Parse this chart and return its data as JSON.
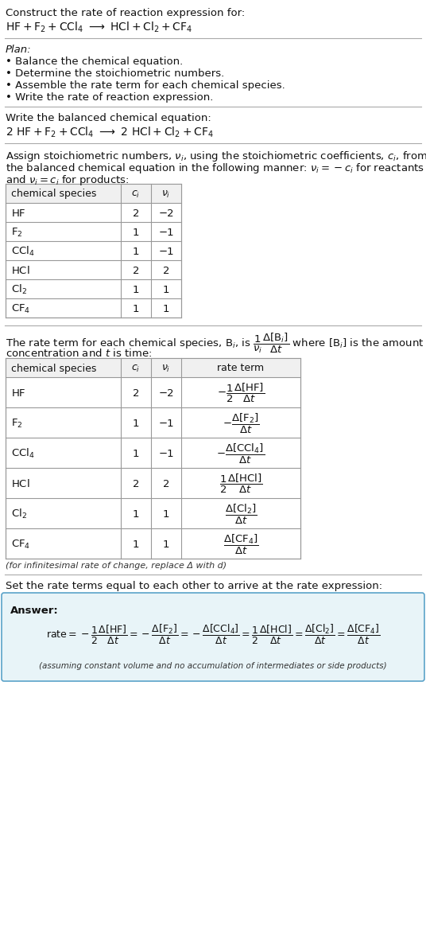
{
  "bg_color": "#ffffff",
  "text_color": "#000000",
  "title_line1": "Construct the rate of reaction expression for:",
  "plan_header": "Plan:",
  "plan_items": [
    "• Balance the chemical equation.",
    "• Determine the stoichiometric numbers.",
    "• Assemble the rate term for each chemical species.",
    "• Write the rate of reaction expression."
  ],
  "balanced_header": "Write the balanced chemical equation:",
  "table1_species": [
    "HF",
    "F_2",
    "CCl_4",
    "HCl",
    "Cl_2",
    "CF_4"
  ],
  "table1_ci": [
    "2",
    "1",
    "1",
    "2",
    "1",
    "1"
  ],
  "table1_ni": [
    "−2",
    "−1",
    "−1",
    "2",
    "1",
    "1"
  ],
  "table2_species": [
    "HF",
    "F_2",
    "CCl_4",
    "HCl",
    "Cl_2",
    "CF_4"
  ],
  "table2_ci": [
    "2",
    "1",
    "1",
    "2",
    "1",
    "1"
  ],
  "table2_ni": [
    "−2",
    "−1",
    "−1",
    "2",
    "1",
    "1"
  ],
  "infinitesimal_note": "(for infinitesimal rate of change, replace Δ with d)",
  "set_rate_text": "Set the rate terms equal to each other to arrive at the rate expression:",
  "answer_label": "Answer:",
  "answer_box_color": "#e8f4f8",
  "answer_box_border": "#5ba3c9",
  "assuming_note": "(assuming constant volume and no accumulation of intermediates or side products)"
}
